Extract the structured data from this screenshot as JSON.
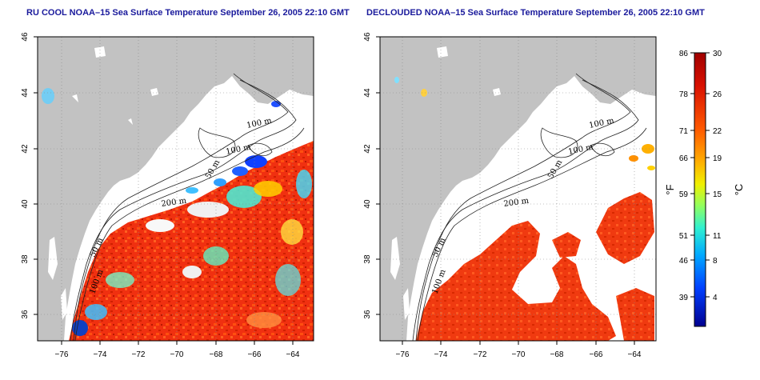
{
  "panels": [
    {
      "title": "RU COOL NOAA–15 Sea Surface Temperature September 26, 2005 22:10 GMT",
      "contour_labels": [
        "100 m",
        "100 m",
        "50 m",
        "200 m",
        "50 m",
        "100 m"
      ]
    },
    {
      "title": "DECLOUDED NOAA–15 Sea Surface Temperature September 26, 2005 22:10 GMT",
      "contour_labels": [
        "100 m",
        "100 m",
        "50 m",
        "200 m",
        "50 m",
        "100 m"
      ]
    }
  ],
  "map": {
    "lon_ticks": [
      "−76",
      "−74",
      "−72",
      "−70",
      "−68",
      "−66",
      "−64"
    ],
    "lat_ticks": [
      "46",
      "44",
      "42",
      "40",
      "38",
      "36"
    ],
    "land_color": "#c2c2c2",
    "cloud_color": "#ffffff"
  },
  "colorbar": {
    "fahrenheit_ticks": [
      "86",
      "78",
      "71",
      "66",
      "59",
      "51",
      "46",
      "39"
    ],
    "celsius_ticks": [
      "30",
      "26",
      "22",
      "19",
      "15",
      "11",
      "8",
      "4"
    ],
    "left_unit": "°F",
    "right_unit": "°C",
    "gradient": [
      "#b00000",
      "#e01000",
      "#ff5000",
      "#ffa000",
      "#ffe000",
      "#c0ff40",
      "#40ffc0",
      "#00c0ff",
      "#0060ff",
      "#0000c0"
    ]
  }
}
